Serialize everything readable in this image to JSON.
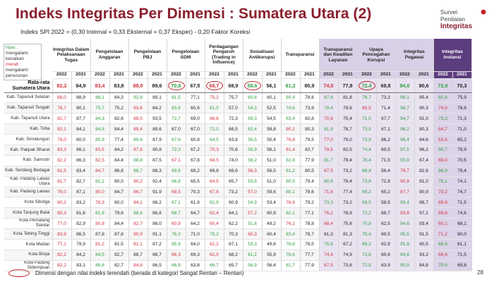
{
  "title": "Indeks Integritas Per Dimensi : Sumatera Utara (2)",
  "subtitle": "Indeks SPI 2022 = (0,30 Internal + 0,33 Eksternal + 0,37 Eksper) - 0,20 Faktor Koreksi",
  "logo": {
    "line1": "Survei",
    "line2": "Penilaian",
    "line3": "Integritas"
  },
  "legend": {
    "hijau_label": "hijau :",
    "hijau_text": "mengalami kenaikan",
    "merah_label": "merah :",
    "merah_text": "mengalami penurunan"
  },
  "columns": [
    "Integritas Dalam Pelaksanaan Tugas",
    "Pengelolaan Anggaran",
    "Pengelolaan PBJ",
    "Pengelolaan SDM",
    "Perdagangan Pengaruh (Trading in Influence)",
    "Sosialisasi Antikorupsi",
    "Transparansi",
    "Transparansi dan Keadilan Layanan",
    "Upaya Pencegahan Korupsi",
    "Integritas Pegawai",
    "Integritas Instansi"
  ],
  "years": [
    "2022",
    "2021"
  ],
  "average": {
    "label": "Rata-rata Sumatera Utara",
    "values": [
      "82,2",
      "84,9",
      "83,4",
      "83,8",
      "88,0",
      "89,6",
      "70,8",
      "67,5",
      "68,7",
      "68,9",
      "58,6",
      "56,1",
      "81,2",
      "80,9",
      "74,5",
      "77,8",
      "72,4",
      "69,8",
      "94,0",
      "90,6",
      "72,9",
      "70,3"
    ],
    "colors": [
      "r",
      "k",
      "r",
      "k",
      "r",
      "k",
      "g",
      "k",
      "r",
      "k",
      "g",
      "k",
      "g",
      "k",
      "r",
      "k",
      "g",
      "k",
      "g",
      "k",
      "g",
      "k"
    ]
  },
  "rows": [
    {
      "label": "Kab. Tapanuli Selatan",
      "values": [
        "88,0",
        "88,9",
        "88,1",
        "84,3",
        "92,6",
        "89,1",
        "81,5",
        "77,1",
        "75,2",
        "75,7",
        "60,8",
        "60,1",
        "80,4",
        "78,6",
        "87,6",
        "81,8",
        "76,7",
        "73,3",
        "99,1",
        "95,4",
        "82,4",
        "75,9"
      ],
      "colors": [
        "r",
        "k",
        "g",
        "k",
        "g",
        "k",
        "g",
        "k",
        "r",
        "k",
        "g",
        "k",
        "g",
        "k",
        "g",
        "k",
        "g",
        "k",
        "g",
        "k",
        "g",
        "k"
      ]
    },
    {
      "label": "Kab. Tapanuli Tengah",
      "values": [
        "76,7",
        "80,1",
        "75,7",
        "75,2",
        "83,6",
        "84,2",
        "63,6",
        "60,6",
        "61,0",
        "57,0",
        "54,3",
        "52,5",
        "74,6",
        "73,9",
        "79,4",
        "78,6",
        "65,5",
        "71,4",
        "98,7",
        "90,3",
        "74,5",
        "76,8"
      ],
      "colors": [
        "r",
        "k",
        "g",
        "k",
        "r",
        "k",
        "g",
        "k",
        "g",
        "k",
        "g",
        "k",
        "g",
        "k",
        "g",
        "k",
        "r",
        "k",
        "g",
        "k",
        "r",
        "k"
      ]
    },
    {
      "label": "Kab. Tapanuli Utara",
      "values": [
        "82,7",
        "87,7",
        "84,3",
        "82,6",
        "89,0",
        "93,5",
        "72,7",
        "69,0",
        "68,6",
        "72,3",
        "59,3",
        "54,5",
        "83,4",
        "82,8",
        "70,6",
        "75,4",
        "71,0",
        "67,7",
        "94,7",
        "91,0",
        "73,3",
        "71,3"
      ],
      "colors": [
        "r",
        "k",
        "g",
        "k",
        "r",
        "k",
        "g",
        "k",
        "r",
        "k",
        "g",
        "k",
        "g",
        "k",
        "r",
        "k",
        "g",
        "k",
        "g",
        "k",
        "g",
        "k"
      ]
    },
    {
      "label": "Kab. Toba",
      "values": [
        "82,1",
        "84,1",
        "84,6",
        "84,4",
        "89,4",
        "89,6",
        "67,0",
        "67,0",
        "72,0",
        "68,5",
        "62,4",
        "58,8",
        "80,2",
        "80,3",
        "81,9",
        "78,7",
        "73,5",
        "67,1",
        "96,2",
        "80,3",
        "64,7",
        "71,0"
      ],
      "colors": [
        "r",
        "k",
        "g",
        "k",
        "r",
        "k",
        "k",
        "k",
        "g",
        "k",
        "g",
        "k",
        "r",
        "k",
        "g",
        "k",
        "g",
        "k",
        "g",
        "k",
        "r",
        "k"
      ]
    },
    {
      "label": "Kab. Simalungun",
      "values": [
        "78,0",
        "80,0",
        "80,9",
        "77,4",
        "89,6",
        "87,9",
        "67,6",
        "60,8",
        "64,5",
        "63,8",
        "56,5",
        "50,4",
        "78,8",
        "79,5",
        "77,0",
        "79,0",
        "73,9",
        "66,2",
        "96,4",
        "84,6",
        "63,6",
        "65,2"
      ],
      "colors": [
        "r",
        "k",
        "g",
        "k",
        "g",
        "k",
        "g",
        "k",
        "g",
        "k",
        "g",
        "k",
        "r",
        "k",
        "r",
        "k",
        "g",
        "k",
        "g",
        "k",
        "r",
        "k"
      ]
    },
    {
      "label": "Kab. Pakpak Bharat",
      "values": [
        "83,3",
        "86,1",
        "83,5",
        "84,2",
        "87,9",
        "90,8",
        "72,3",
        "67,2",
        "70,3",
        "70,6",
        "59,9",
        "56,1",
        "81,4",
        "82,7",
        "79,5",
        "82,5",
        "74,4",
        "69,5",
        "97,5",
        "96,2",
        "80,7",
        "78,9"
      ],
      "colors": [
        "r",
        "k",
        "r",
        "k",
        "r",
        "k",
        "g",
        "k",
        "r",
        "k",
        "g",
        "k",
        "r",
        "k",
        "r",
        "k",
        "g",
        "k",
        "g",
        "k",
        "g",
        "k"
      ]
    },
    {
      "label": "Kab. Samosir",
      "values": [
        "82,2",
        "86,3",
        "82,5",
        "84,4",
        "88,8",
        "87,5",
        "67,1",
        "67,8",
        "64,5",
        "74,0",
        "56,2",
        "51,0",
        "82,8",
        "77,9",
        "81,7",
        "79,4",
        "76,4",
        "71,5",
        "93,9",
        "87,4",
        "69,0",
        "70,5"
      ],
      "colors": [
        "r",
        "k",
        "r",
        "k",
        "g",
        "k",
        "r",
        "k",
        "r",
        "k",
        "g",
        "k",
        "g",
        "k",
        "g",
        "k",
        "g",
        "k",
        "g",
        "k",
        "r",
        "k"
      ]
    },
    {
      "label": "Kab. Serdang Bedagai",
      "values": [
        "81,5",
        "83,4",
        "84,7",
        "86,8",
        "88,7",
        "88,3",
        "69,6",
        "69,2",
        "69,6",
        "69,6",
        "56,3",
        "56,5",
        "81,2",
        "80,5",
        "67,5",
        "73,2",
        "66,4",
        "56,4",
        "79,7",
        "82,6",
        "86,9",
        "79,4"
      ],
      "colors": [
        "r",
        "k",
        "r",
        "k",
        "g",
        "k",
        "g",
        "k",
        "k",
        "k",
        "r",
        "k",
        "g",
        "k",
        "r",
        "k",
        "g",
        "k",
        "r",
        "k",
        "g",
        "k"
      ]
    },
    {
      "label": "Kab. Padang Lawas Utara",
      "values": [
        "81,7",
        "82,7",
        "81,2",
        "80,0",
        "90,2",
        "92,4",
        "66,8",
        "65,5",
        "64,5",
        "65,7",
        "53,6",
        "51,0",
        "80,5",
        "79,4",
        "80,9",
        "79,4",
        "73,8",
        "72,8",
        "90,9",
        "91,0",
        "78,1",
        "74,1"
      ],
      "colors": [
        "r",
        "k",
        "g",
        "k",
        "r",
        "k",
        "g",
        "k",
        "r",
        "k",
        "g",
        "k",
        "g",
        "k",
        "g",
        "k",
        "g",
        "k",
        "r",
        "k",
        "g",
        "k"
      ]
    },
    {
      "label": "Kab. Padang Lawas",
      "values": [
        "79,0",
        "87,1",
        "80,0",
        "84,7",
        "86,7",
        "91,9",
        "68,5",
        "70,3",
        "67,6",
        "73,2",
        "57,0",
        "59,6",
        "80,1",
        "78,6",
        "71,6",
        "77,4",
        "69,2",
        "65,2",
        "87,7",
        "90,9",
        "73,2",
        "74,7"
      ],
      "colors": [
        "r",
        "k",
        "r",
        "k",
        "r",
        "k",
        "r",
        "k",
        "r",
        "k",
        "r",
        "k",
        "g",
        "k",
        "r",
        "k",
        "g",
        "k",
        "r",
        "k",
        "r",
        "k"
      ]
    },
    {
      "label": "Kota Sibolga",
      "values": [
        "80,2",
        "83,2",
        "78,3",
        "80,0",
        "84,1",
        "86,2",
        "67,1",
        "61,9",
        "62,9",
        "60,9",
        "54,9",
        "53,4",
        "76,6",
        "79,2",
        "73,3",
        "73,2",
        "63,5",
        "58,5",
        "93,4",
        "88,7",
        "69,9",
        "71,5"
      ],
      "colors": [
        "r",
        "k",
        "r",
        "k",
        "r",
        "k",
        "g",
        "k",
        "g",
        "k",
        "g",
        "k",
        "r",
        "k",
        "g",
        "k",
        "g",
        "k",
        "g",
        "k",
        "r",
        "k"
      ]
    },
    {
      "label": "Kota Tanjung Balai",
      "values": [
        "80,3",
        "81,6",
        "81,9",
        "79,6",
        "88,4",
        "86,8",
        "68,7",
        "64,7",
        "62,4",
        "64,1",
        "57,2",
        "60,9",
        "82,1",
        "77,1",
        "76,2",
        "78,8",
        "72,2",
        "68,7",
        "93,9",
        "97,2",
        "69,6",
        "74,6"
      ],
      "colors": [
        "r",
        "k",
        "g",
        "k",
        "g",
        "k",
        "g",
        "k",
        "r",
        "k",
        "r",
        "k",
        "g",
        "k",
        "r",
        "k",
        "g",
        "k",
        "r",
        "k",
        "r",
        "k"
      ]
    },
    {
      "label": "Kota Pematang Siantar",
      "values": [
        "77,0",
        "82,9",
        "80,8",
        "84,4",
        "82,7",
        "86,0",
        "60,9",
        "64,2",
        "60,4",
        "62,2",
        "51,6",
        "49,2",
        "76,2",
        "78,8",
        "68,4",
        "75,6",
        "70,8",
        "62,5",
        "94,6",
        "93,4",
        "60,1",
        "68,1"
      ],
      "colors": [
        "r",
        "k",
        "r",
        "k",
        "r",
        "k",
        "r",
        "k",
        "r",
        "k",
        "g",
        "k",
        "r",
        "k",
        "r",
        "k",
        "g",
        "k",
        "g",
        "k",
        "r",
        "k"
      ]
    },
    {
      "label": "Kota Tebing Tinggi",
      "values": [
        "83,9",
        "86,5",
        "87,8",
        "87,8",
        "90,9",
        "91,1",
        "76,3",
        "71,0",
        "75,2",
        "70,3",
        "60,3",
        "60,4",
        "83,4",
        "78,7",
        "81,3",
        "81,3",
        "75,4",
        "69,5",
        "95,5",
        "91,5",
        "71,2",
        "80,0"
      ],
      "colors": [
        "r",
        "k",
        "k",
        "k",
        "r",
        "k",
        "g",
        "k",
        "g",
        "k",
        "r",
        "k",
        "g",
        "k",
        "k",
        "k",
        "g",
        "k",
        "g",
        "k",
        "r",
        "k"
      ]
    },
    {
      "label": "Kota Medan",
      "values": [
        "77,1",
        "79,9",
        "81,2",
        "81,5",
        "82,1",
        "87,2",
        "65,6",
        "64,0",
        "62,2",
        "67,1",
        "53,3",
        "49,6",
        "78,8",
        "78,5",
        "75,8",
        "67,2",
        "69,2",
        "62,9",
        "91,9",
        "80,5",
        "66,6",
        "61,1"
      ],
      "colors": [
        "r",
        "k",
        "r",
        "k",
        "r",
        "k",
        "g",
        "k",
        "r",
        "k",
        "g",
        "k",
        "g",
        "k",
        "g",
        "k",
        "g",
        "k",
        "g",
        "k",
        "g",
        "k"
      ]
    },
    {
      "label": "Kota Binjai",
      "values": [
        "82,2",
        "84,2",
        "84,5",
        "82,7",
        "88,7",
        "88,7",
        "66,3",
        "69,3",
        "62,0",
        "68,2",
        "61,2",
        "55,9",
        "78,6",
        "77,7",
        "74,4",
        "74,9",
        "72,8",
        "65,6",
        "94,8",
        "93,2",
        "66,6",
        "71,5"
      ],
      "colors": [
        "r",
        "k",
        "g",
        "k",
        "k",
        "k",
        "r",
        "k",
        "r",
        "k",
        "g",
        "k",
        "g",
        "k",
        "r",
        "k",
        "g",
        "k",
        "g",
        "k",
        "r",
        "k"
      ]
    },
    {
      "label": "Kota Padang Sidempuan",
      "values": [
        "82,2",
        "83,1",
        "85,6",
        "82,7",
        "84,6",
        "86,5",
        "66,9",
        "63,8",
        "66,7",
        "65,7",
        "56,9",
        "56,4",
        "81,7",
        "77,9",
        "67,5",
        "73,6",
        "72,5",
        "63,9",
        "90,8",
        "84,8",
        "70,6",
        "69,8"
      ],
      "colors": [
        "r",
        "k",
        "g",
        "k",
        "r",
        "k",
        "g",
        "k",
        "g",
        "k",
        "g",
        "k",
        "g",
        "k",
        "r",
        "k",
        "g",
        "k",
        "g",
        "k",
        "g",
        "k"
      ]
    }
  ],
  "circled_average_indices": [
    6,
    8,
    10,
    16
  ],
  "footer_note": "Dimensi dengan nilai indeks terendah (berada di kategori Sangat Rentan – Rentan)",
  "page_number": "28",
  "colors": {
    "title": "#8b1f2e",
    "increase": "#2e9e3f",
    "decrease": "#d0303a",
    "header_purple": "#d9cfe6",
    "header_dark": "#5c3d7e",
    "circle": "#c0272d"
  }
}
